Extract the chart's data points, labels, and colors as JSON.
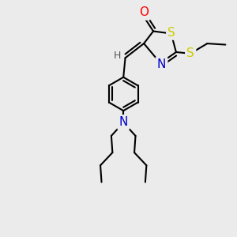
{
  "bg_color": "#ebebeb",
  "atom_colors": {
    "C": "#000000",
    "N": "#0000cc",
    "O": "#ff0000",
    "S": "#cccc00",
    "H": "#555555"
  },
  "bond_color": "#000000",
  "bond_width": 1.5,
  "fig_width": 3.0,
  "fig_height": 3.0,
  "dpi": 100
}
